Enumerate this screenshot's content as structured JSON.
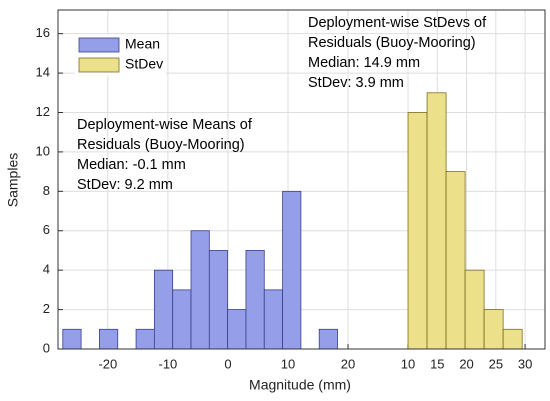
{
  "chart_data": {
    "type": "histogram",
    "xlabel": "Magnitude (mm)",
    "ylabel": "Samples",
    "ylim": [
      0,
      17.2
    ],
    "yticks": [
      0,
      2,
      4,
      6,
      8,
      10,
      12,
      14,
      16
    ],
    "xlim": [
      -28.3,
      52.8
    ],
    "xticks": [
      -20,
      -10,
      0,
      10,
      20
    ],
    "x2lim": [
      -49.8,
      33.4
    ],
    "x2ticks": [
      10,
      15,
      20,
      25,
      30
    ],
    "grid": true,
    "legend": "upper left",
    "series": [
      {
        "name": "Mean",
        "color": "#959ee8",
        "edgecolor": "#3a3f8a",
        "bins": [
          -27.5,
          -24.45,
          -21.4,
          -18.35,
          -15.3,
          -12.25,
          -9.2,
          -6.15,
          -3.1,
          -0.05,
          3.0,
          6.05,
          9.1,
          12.15,
          15.2,
          18.25
        ],
        "values": [
          1,
          0,
          1,
          0,
          1,
          4,
          3,
          6,
          5,
          2,
          5,
          3,
          8,
          0,
          1
        ]
      },
      {
        "name": "StDev",
        "color": "#ece08a",
        "edgecolor": "#7a6f20",
        "axis": "x2",
        "bins": [
          10,
          13.25,
          16.5,
          19.75,
          23,
          26.25,
          29.5
        ],
        "values": [
          12,
          13,
          9,
          4,
          2,
          1
        ]
      }
    ],
    "annotations": [
      {
        "lines": [
          "Deployment-wise Means of",
          "Residuals (Buoy-Mooring)",
          "Median: -0.1 mm",
          "StDev: 9.2 mm"
        ]
      },
      {
        "lines": [
          "Deployment-wise StDevs of",
          "Residuals (Buoy-Mooring)",
          "Median: 14.9 mm",
          "StDev: 3.9 mm"
        ]
      }
    ]
  }
}
